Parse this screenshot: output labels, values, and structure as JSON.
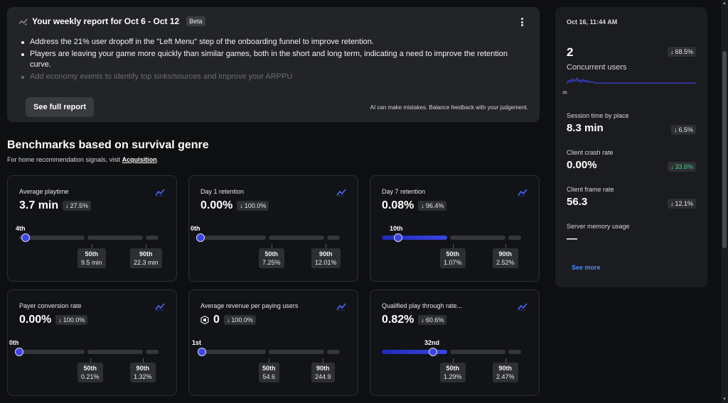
{
  "report": {
    "title": "Your weekly report for Oct 6 - Oct 12",
    "badge": "Beta",
    "bullets": [
      "Address the 21% user dropoff in the \"Left Menu\" step of the onboarding funnel to improve retention.",
      "Players are leaving your game more quickly than similar games, both in the short and long term, indicating a need to improve the retention curve.",
      "Add economy events to identify top sinks/sources and improve your ARPPU"
    ],
    "button": "See full report",
    "disclaimer": "AI can make mistakes. Balance feedback with your judgement."
  },
  "benchmarks": {
    "title": "Benchmarks based on survival genre",
    "subtitle_prefix": "For home recommendation signals, visit",
    "subtitle_link": "Acquisition",
    "subtitle_suffix": ".",
    "cards": [
      {
        "label": "Average playtime",
        "value": "3.7 min",
        "change": "27.5%",
        "percentile": "4th",
        "percentile_value": 0.04,
        "p50_label": "50th",
        "p50": "9.5 min",
        "p90_label": "90th",
        "p90": "22.3 min"
      },
      {
        "label": "Day 1 retention",
        "value": "0.00%",
        "change": "100.0%",
        "percentile": "0th",
        "percentile_value": 0.0,
        "p50_label": "50th",
        "p50": "7.25%",
        "p90_label": "90th",
        "p90": "12.01%"
      },
      {
        "label": "Day 7 retention",
        "value": "0.08%",
        "change": "96.4%",
        "percentile": "10th",
        "percentile_value": 0.1,
        "p50_label": "50th",
        "p50": "1.07%",
        "p90_label": "90th",
        "p90": "2.52%"
      },
      {
        "label": "Payer conversion rate",
        "value": "0.00%",
        "change": "100.0%",
        "percentile": "0th",
        "percentile_value": 0.0,
        "p50_label": "50th",
        "p50": "0.21%",
        "p90_label": "90th",
        "p90": "1.32%"
      },
      {
        "label": "Average revenue per paying users",
        "value": "0",
        "change": "100.0%",
        "percentile": "1st",
        "percentile_value": 0.01,
        "p50_label": "50th",
        "p50": "54.6",
        "p90_label": "90th",
        "p90": "244.9"
      },
      {
        "label": "Qualified play through rate...",
        "value": "0.82%",
        "change": "60.6%",
        "percentile": "32nd",
        "percentile_value": 0.32,
        "p50_label": "50th",
        "p50": "1.29%",
        "p90_label": "90th",
        "p90": "2.47%"
      }
    ]
  },
  "side": {
    "timestamp": "Oct 16, 11:44 AM",
    "concurrent_value": "2",
    "concurrent_label": "Concurrent users",
    "concurrent_change": "68.5%",
    "axis_mark": "9",
    "metrics": [
      {
        "label": "Session time by place",
        "value": "8.3 min",
        "change": "6.5%",
        "good": false
      },
      {
        "label": "Client crash rate",
        "value": "0.00%",
        "change": "33.6%",
        "good": true
      },
      {
        "label": "Client frame rate",
        "value": "56.3",
        "change": "12.1%",
        "good": false
      },
      {
        "label": "Server memory usage",
        "value": "—",
        "change": "",
        "good": false
      }
    ],
    "see_more": "See more"
  },
  "icons": {
    "arrow_down": "↓",
    "arrow_up": "↑"
  },
  "colors": {
    "accent": "#3b45e0",
    "link": "#4d8eff",
    "good": "#3ddc84",
    "card_bg": "#121316",
    "panel_bg": "#232428"
  }
}
